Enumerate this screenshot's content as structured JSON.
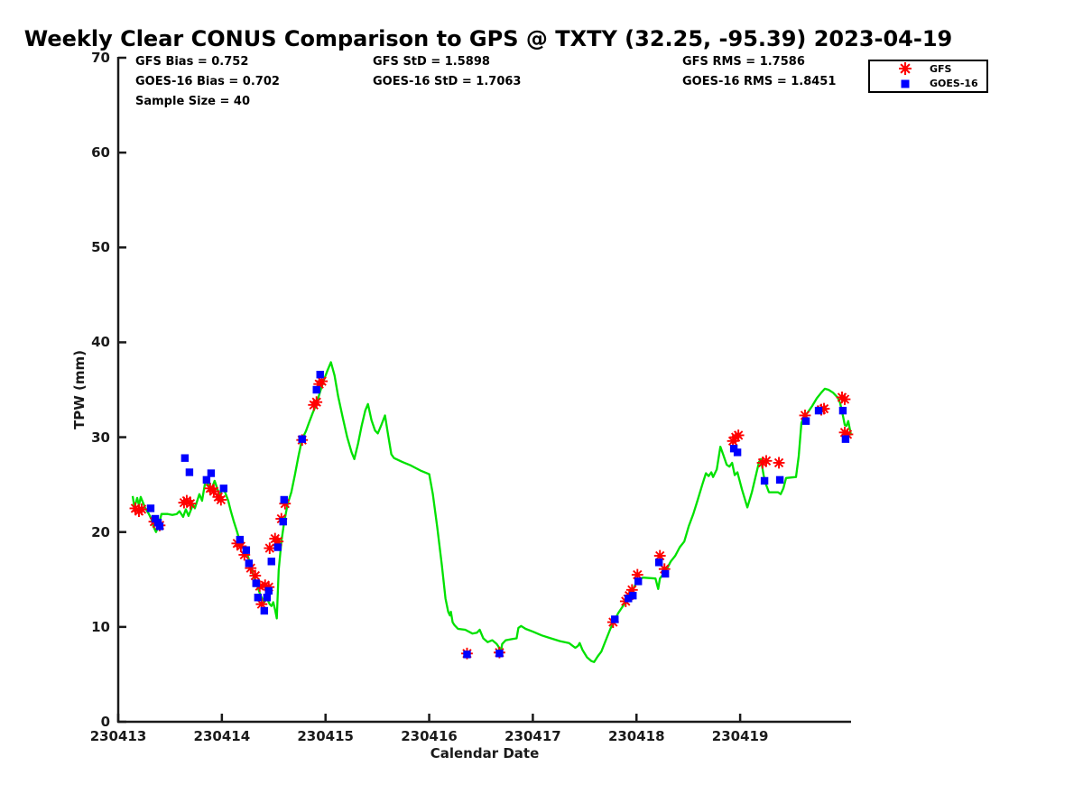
{
  "title": "Weekly Clear CONUS Comparison to GPS @ TXTY (32.25, -95.39) 2023-04-19",
  "stats": {
    "gfs_bias": "GFS Bias = 0.752",
    "gfs_std": "GFS StD = 1.5898",
    "gfs_rms": "GFS RMS = 1.7586",
    "goes_bias": "GOES-16 Bias = 0.702",
    "goes_std": "GOES-16 StD = 1.7063",
    "goes_rms": "GOES-16 RMS = 1.8451",
    "sample_size": "Sample Size = 40"
  },
  "legend": {
    "entries": [
      {
        "label": "GFS",
        "marker": "asterisk",
        "color": "#ff0000"
      },
      {
        "label": "GOES-16",
        "marker": "square",
        "color": "#0000ff"
      }
    ]
  },
  "axes": {
    "x": {
      "label": "Calendar Date",
      "tick_days": [
        0,
        1,
        2,
        3,
        4,
        5,
        6
      ],
      "tick_labels": [
        "230413",
        "230414",
        "230415",
        "230416",
        "230417",
        "230418",
        "230419"
      ]
    },
    "y": {
      "label": "TPW (mm)",
      "ticks": [
        0,
        10,
        20,
        30,
        40,
        50,
        60,
        70
      ]
    }
  },
  "chart_data": {
    "type": "line",
    "title": "Weekly Clear CONUS Comparison to GPS @ TXTY (32.25, -95.39) 2023-04-19",
    "xlabel": "Calendar Date",
    "ylabel": "TPW (mm)",
    "ylim": [
      0,
      70
    ],
    "x_unit": "days since 230413",
    "x_range_days": [
      0,
      7.07
    ],
    "grid": false,
    "legend_position": "top-right",
    "sample_size": 40,
    "series": [
      {
        "name": "GPS",
        "type": "line",
        "color": "#00e100",
        "points": [
          [
            0.139,
            23.8
          ],
          [
            0.157,
            22.6
          ],
          [
            0.183,
            23.6
          ],
          [
            0.2,
            22.8
          ],
          [
            0.217,
            23.7
          ],
          [
            0.261,
            22.5
          ],
          [
            0.296,
            21.9
          ],
          [
            0.322,
            21.3
          ],
          [
            0.339,
            20.6
          ],
          [
            0.365,
            20.0
          ],
          [
            0.391,
            20.7
          ],
          [
            0.417,
            21.9
          ],
          [
            0.478,
            21.9
          ],
          [
            0.522,
            21.8
          ],
          [
            0.565,
            21.9
          ],
          [
            0.591,
            22.2
          ],
          [
            0.626,
            21.6
          ],
          [
            0.652,
            22.4
          ],
          [
            0.678,
            21.7
          ],
          [
            0.722,
            22.9
          ],
          [
            0.739,
            22.5
          ],
          [
            0.783,
            24.0
          ],
          [
            0.809,
            23.3
          ],
          [
            0.843,
            25.5
          ],
          [
            0.87,
            25.0
          ],
          [
            0.896,
            24.4
          ],
          [
            0.93,
            25.4
          ],
          [
            0.974,
            24.0
          ],
          [
            1.017,
            24.6
          ],
          [
            1.061,
            23.3
          ],
          [
            1.087,
            22.2
          ],
          [
            1.113,
            21.2
          ],
          [
            1.148,
            20.0
          ],
          [
            1.174,
            19.0
          ],
          [
            1.2,
            18.4
          ],
          [
            1.235,
            18.1
          ],
          [
            1.261,
            17.1
          ],
          [
            1.287,
            16.0
          ],
          [
            1.322,
            14.9
          ],
          [
            1.348,
            14.1
          ],
          [
            1.374,
            13.3
          ],
          [
            1.409,
            12.6
          ],
          [
            1.435,
            13.0
          ],
          [
            1.461,
            12.4
          ],
          [
            1.478,
            12.2
          ],
          [
            1.496,
            12.6
          ],
          [
            1.513,
            11.8
          ],
          [
            1.53,
            10.9
          ],
          [
            1.548,
            16.0
          ],
          [
            1.574,
            19.0
          ],
          [
            1.6,
            21.0
          ],
          [
            1.635,
            23.0
          ],
          [
            1.67,
            24.2
          ],
          [
            1.704,
            26.0
          ],
          [
            1.739,
            28.0
          ],
          [
            1.774,
            29.8
          ],
          [
            1.809,
            30.6
          ],
          [
            1.843,
            31.6
          ],
          [
            1.878,
            32.6
          ],
          [
            1.913,
            33.5
          ],
          [
            1.948,
            34.8
          ],
          [
            1.983,
            36.0
          ],
          [
            2.017,
            37.0
          ],
          [
            2.052,
            37.9
          ],
          [
            2.087,
            36.5
          ],
          [
            2.122,
            34.3
          ],
          [
            2.165,
            32.1
          ],
          [
            2.209,
            30.0
          ],
          [
            2.252,
            28.4
          ],
          [
            2.278,
            27.7
          ],
          [
            2.313,
            29.3
          ],
          [
            2.348,
            31.2
          ],
          [
            2.383,
            32.8
          ],
          [
            2.409,
            33.5
          ],
          [
            2.443,
            31.8
          ],
          [
            2.478,
            30.7
          ],
          [
            2.504,
            30.4
          ],
          [
            2.539,
            31.3
          ],
          [
            2.574,
            32.3
          ],
          [
            2.6,
            30.5
          ],
          [
            2.635,
            28.2
          ],
          [
            2.661,
            27.8
          ],
          [
            2.739,
            27.4
          ],
          [
            2.826,
            27.0
          ],
          [
            2.913,
            26.5
          ],
          [
            3.0,
            26.1
          ],
          [
            3.035,
            24.0
          ],
          [
            3.078,
            20.5
          ],
          [
            3.122,
            16.5
          ],
          [
            3.157,
            13.0
          ],
          [
            3.183,
            11.6
          ],
          [
            3.2,
            11.2
          ],
          [
            3.209,
            11.6
          ],
          [
            3.226,
            10.5
          ],
          [
            3.243,
            10.2
          ],
          [
            3.278,
            9.8
          ],
          [
            3.348,
            9.7
          ],
          [
            3.417,
            9.3
          ],
          [
            3.461,
            9.4
          ],
          [
            3.487,
            9.7
          ],
          [
            3.522,
            8.8
          ],
          [
            3.565,
            8.4
          ],
          [
            3.609,
            8.6
          ],
          [
            3.652,
            8.2
          ],
          [
            3.67,
            7.9
          ],
          [
            3.687,
            7.1
          ],
          [
            3.704,
            8.2
          ],
          [
            3.739,
            8.6
          ],
          [
            3.791,
            8.7
          ],
          [
            3.843,
            8.8
          ],
          [
            3.861,
            9.9
          ],
          [
            3.887,
            10.1
          ],
          [
            3.93,
            9.8
          ],
          [
            4.0,
            9.5
          ],
          [
            4.087,
            9.1
          ],
          [
            4.174,
            8.8
          ],
          [
            4.261,
            8.5
          ],
          [
            4.348,
            8.3
          ],
          [
            4.409,
            7.8
          ],
          [
            4.435,
            8.0
          ],
          [
            4.452,
            8.3
          ],
          [
            4.478,
            7.6
          ],
          [
            4.522,
            6.8
          ],
          [
            4.565,
            6.4
          ],
          [
            4.591,
            6.3
          ],
          [
            4.626,
            6.9
          ],
          [
            4.661,
            7.4
          ],
          [
            4.704,
            8.6
          ],
          [
            4.748,
            9.8
          ],
          [
            4.783,
            10.6
          ],
          [
            4.826,
            11.5
          ],
          [
            4.87,
            12.2
          ],
          [
            4.913,
            13.0
          ],
          [
            4.957,
            13.7
          ],
          [
            4.991,
            14.5
          ],
          [
            5.026,
            15.0
          ],
          [
            5.061,
            15.2
          ],
          [
            5.183,
            15.1
          ],
          [
            5.209,
            14.0
          ],
          [
            5.226,
            15.1
          ],
          [
            5.261,
            15.6
          ],
          [
            5.287,
            16.0
          ],
          [
            5.33,
            16.9
          ],
          [
            5.374,
            17.5
          ],
          [
            5.417,
            18.4
          ],
          [
            5.461,
            19.0
          ],
          [
            5.504,
            20.6
          ],
          [
            5.548,
            21.9
          ],
          [
            5.591,
            23.4
          ],
          [
            5.635,
            25.0
          ],
          [
            5.67,
            26.2
          ],
          [
            5.696,
            25.9
          ],
          [
            5.722,
            26.3
          ],
          [
            5.739,
            25.8
          ],
          [
            5.774,
            26.6
          ],
          [
            5.809,
            29.0
          ],
          [
            5.835,
            28.2
          ],
          [
            5.87,
            27.1
          ],
          [
            5.896,
            26.9
          ],
          [
            5.922,
            27.3
          ],
          [
            5.948,
            26.0
          ],
          [
            5.974,
            26.3
          ],
          [
            6.017,
            24.5
          ],
          [
            6.07,
            22.6
          ],
          [
            6.113,
            24.2
          ],
          [
            6.157,
            26.2
          ],
          [
            6.183,
            27.4
          ],
          [
            6.2,
            27.7
          ],
          [
            6.226,
            26.0
          ],
          [
            6.243,
            25.2
          ],
          [
            6.278,
            24.2
          ],
          [
            6.365,
            24.2
          ],
          [
            6.391,
            24.0
          ],
          [
            6.417,
            24.6
          ],
          [
            6.443,
            25.7
          ],
          [
            6.539,
            25.8
          ],
          [
            6.565,
            28.0
          ],
          [
            6.591,
            31.5
          ],
          [
            6.617,
            32.2
          ],
          [
            6.652,
            32.6
          ],
          [
            6.696,
            33.3
          ],
          [
            6.739,
            34.1
          ],
          [
            6.783,
            34.7
          ],
          [
            6.817,
            35.1
          ],
          [
            6.852,
            35.0
          ],
          [
            6.896,
            34.7
          ],
          [
            6.939,
            34.2
          ],
          [
            6.965,
            33.6
          ],
          [
            6.991,
            32.3
          ],
          [
            7.009,
            31.3
          ],
          [
            7.026,
            31.2
          ],
          [
            7.043,
            31.7
          ],
          [
            7.07,
            30.2
          ]
        ]
      },
      {
        "name": "GFS",
        "type": "asterisk",
        "color": "#ff0000",
        "points": [
          [
            0.165,
            22.5
          ],
          [
            0.2,
            22.2
          ],
          [
            0.226,
            22.4
          ],
          [
            0.348,
            21.1
          ],
          [
            0.374,
            20.9
          ],
          [
            0.4,
            20.7
          ],
          [
            0.635,
            23.1
          ],
          [
            0.661,
            23.3
          ],
          [
            0.696,
            23.0
          ],
          [
            0.887,
            24.6
          ],
          [
            0.922,
            24.3
          ],
          [
            0.965,
            23.7
          ],
          [
            0.991,
            23.4
          ],
          [
            1.148,
            18.8
          ],
          [
            1.183,
            18.5
          ],
          [
            1.217,
            17.6
          ],
          [
            1.278,
            16.2
          ],
          [
            1.322,
            15.4
          ],
          [
            1.365,
            14.3
          ],
          [
            1.383,
            12.4
          ],
          [
            1.417,
            14.4
          ],
          [
            1.452,
            14.2
          ],
          [
            1.461,
            18.3
          ],
          [
            1.513,
            19.3
          ],
          [
            1.539,
            19.0
          ],
          [
            1.574,
            21.4
          ],
          [
            1.609,
            23.0
          ],
          [
            1.774,
            29.7
          ],
          [
            1.887,
            33.4
          ],
          [
            1.913,
            33.7
          ],
          [
            1.939,
            35.6
          ],
          [
            1.965,
            35.9
          ],
          [
            3.365,
            7.2
          ],
          [
            3.678,
            7.3
          ],
          [
            4.774,
            10.5
          ],
          [
            4.896,
            12.7
          ],
          [
            4.93,
            13.3
          ],
          [
            4.957,
            13.9
          ],
          [
            5.009,
            15.5
          ],
          [
            5.226,
            17.5
          ],
          [
            5.27,
            16.1
          ],
          [
            5.93,
            29.6
          ],
          [
            5.957,
            30.0
          ],
          [
            5.983,
            30.2
          ],
          [
            6.217,
            27.3
          ],
          [
            6.252,
            27.5
          ],
          [
            6.374,
            27.3
          ],
          [
            6.626,
            32.3
          ],
          [
            6.783,
            32.9
          ],
          [
            6.809,
            33.0
          ],
          [
            6.983,
            34.2
          ],
          [
            7.009,
            34.0
          ],
          [
            7.009,
            30.5
          ],
          [
            7.035,
            30.3
          ]
        ]
      },
      {
        "name": "GOES-16",
        "type": "square",
        "color": "#0000ff",
        "points": [
          [
            0.313,
            22.5
          ],
          [
            0.357,
            21.4
          ],
          [
            0.383,
            21.0
          ],
          [
            0.4,
            20.6
          ],
          [
            0.643,
            27.8
          ],
          [
            0.687,
            26.3
          ],
          [
            0.852,
            25.5
          ],
          [
            0.896,
            26.2
          ],
          [
            1.017,
            24.6
          ],
          [
            1.174,
            19.2
          ],
          [
            1.235,
            18.1
          ],
          [
            1.261,
            16.7
          ],
          [
            1.33,
            14.6
          ],
          [
            1.348,
            13.1
          ],
          [
            1.409,
            11.7
          ],
          [
            1.435,
            13.1
          ],
          [
            1.452,
            13.8
          ],
          [
            1.478,
            16.9
          ],
          [
            1.539,
            18.4
          ],
          [
            1.591,
            21.1
          ],
          [
            1.6,
            23.4
          ],
          [
            1.774,
            29.8
          ],
          [
            1.913,
            35.0
          ],
          [
            1.948,
            36.6
          ],
          [
            3.365,
            7.1
          ],
          [
            3.678,
            7.2
          ],
          [
            4.791,
            10.8
          ],
          [
            4.922,
            13.0
          ],
          [
            4.965,
            13.3
          ],
          [
            5.017,
            14.8
          ],
          [
            5.217,
            16.8
          ],
          [
            5.278,
            15.6
          ],
          [
            5.939,
            28.8
          ],
          [
            5.974,
            28.4
          ],
          [
            6.235,
            25.4
          ],
          [
            6.383,
            25.5
          ],
          [
            6.635,
            31.7
          ],
          [
            6.757,
            32.8
          ],
          [
            6.991,
            32.8
          ],
          [
            7.017,
            29.8
          ]
        ]
      }
    ]
  }
}
